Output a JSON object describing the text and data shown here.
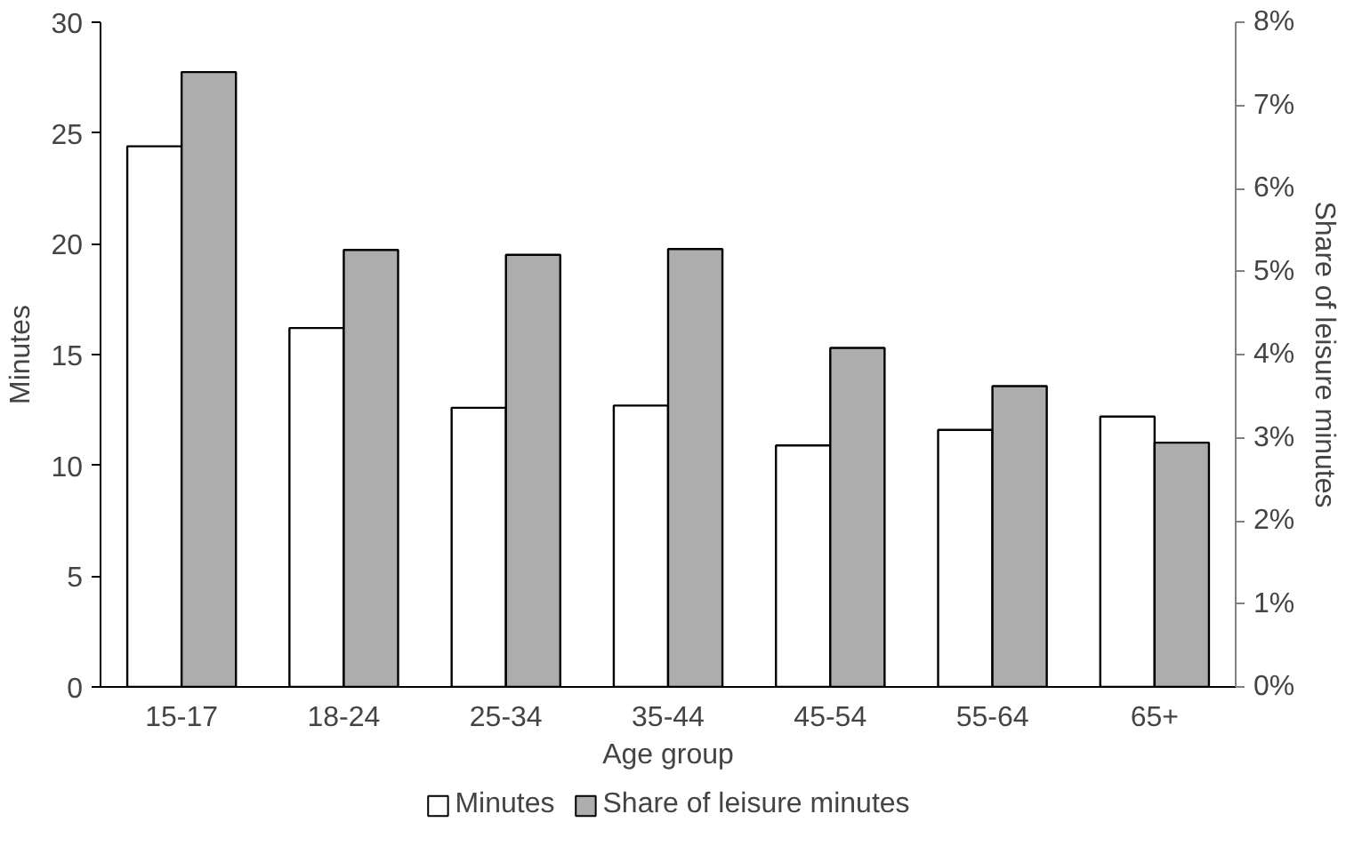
{
  "chart_data": {
    "type": "bar",
    "xlabel": "Age group",
    "ylabel": "Minutes",
    "y2label": "Share of leisure minutes",
    "categories": [
      "15-17",
      "18-24",
      "25-34",
      "35-44",
      "45-54",
      "55-64",
      "65+"
    ],
    "series": [
      {
        "name": "Minutes",
        "color": "#ffffff",
        "values": [
          24.4,
          16.2,
          12.6,
          12.7,
          10.9,
          11.6,
          12.2
        ]
      },
      {
        "name": "Share of leisure minutes",
        "color": "#adadad",
        "axis": "y2",
        "values": [
          7.4,
          5.26,
          5.2,
          5.27,
          4.08,
          3.62,
          2.94
        ]
      }
    ],
    "ylim": [
      0,
      30
    ],
    "yticks": [
      0,
      5,
      10,
      15,
      20,
      25,
      30
    ],
    "y2lim": [
      0,
      8
    ],
    "y2ticks": [
      {
        "value": 0,
        "label": "0%"
      },
      {
        "value": 1,
        "label": "1%"
      },
      {
        "value": 2,
        "label": "2%"
      },
      {
        "value": 3,
        "label": "3%"
      },
      {
        "value": 4,
        "label": "4%"
      },
      {
        "value": 5,
        "label": "5%"
      },
      {
        "value": 6,
        "label": "6%"
      },
      {
        "value": 7,
        "label": "7%"
      },
      {
        "value": 8,
        "label": "8%"
      }
    ],
    "grid": false,
    "legend": "bottom"
  }
}
